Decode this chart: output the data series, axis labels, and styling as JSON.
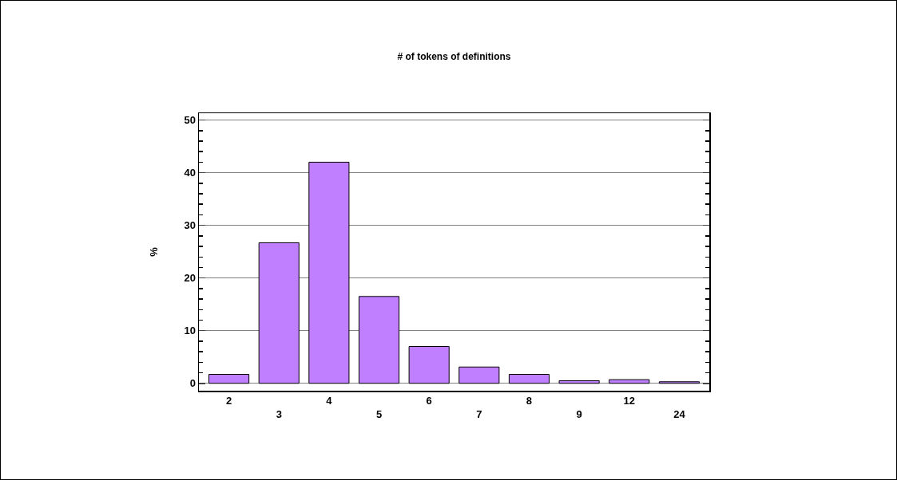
{
  "chart_data": {
    "type": "bar",
    "title": "# of tokens of definitions",
    "ylabel": "%",
    "categories": [
      "2",
      "3",
      "4",
      "5",
      "6",
      "7",
      "8",
      "9",
      "12",
      "24"
    ],
    "values": [
      1.7,
      26.7,
      42,
      16.5,
      7,
      3.1,
      1.7,
      0.5,
      0.7,
      0.3
    ],
    "color": "#bf7fff",
    "ylim": [
      -1.4,
      51.3
    ],
    "yticks": [
      0,
      10,
      20,
      30,
      40,
      50
    ],
    "grid": "y",
    "legend": false
  }
}
